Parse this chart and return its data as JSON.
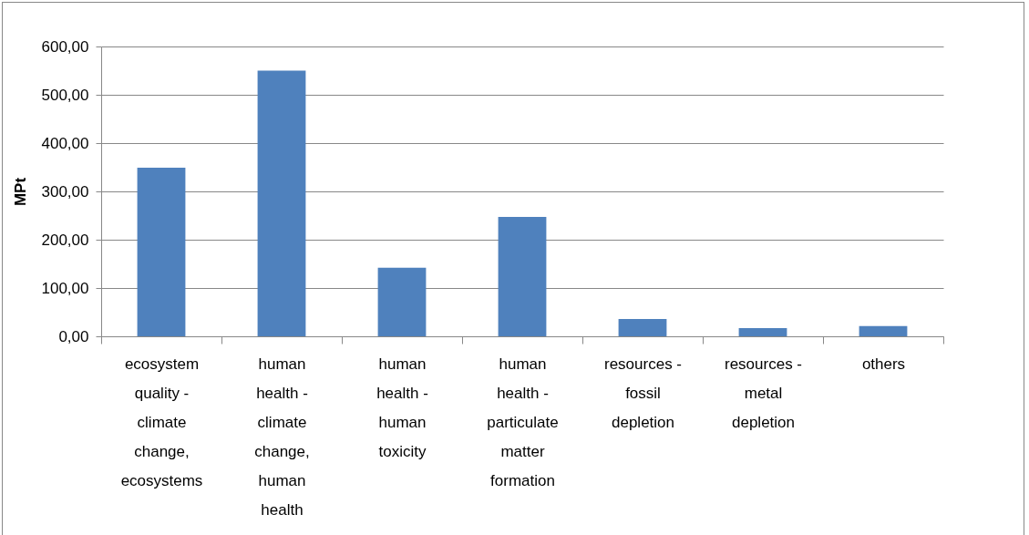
{
  "chart_data": {
    "type": "bar",
    "ylabel": "MPt",
    "categories": [
      "ecosystem quality - climate change, ecosystems",
      "human health - climate change, human health",
      "human health - human toxicity",
      "human health - particulate matter formation",
      "resources - fossil depletion",
      "resources - metal depletion",
      "others"
    ],
    "values": [
      349,
      550,
      142,
      247,
      36,
      17,
      21
    ],
    "color": "#4f81bd",
    "ylim": [
      0,
      600
    ],
    "yticks": [
      {
        "value": 0,
        "label": "0,00"
      },
      {
        "value": 100,
        "label": "100,00"
      },
      {
        "value": 200,
        "label": "200,00"
      },
      {
        "value": 300,
        "label": "300,00"
      },
      {
        "value": 400,
        "label": "400,00"
      },
      {
        "value": 500,
        "label": "500,00"
      },
      {
        "value": 600,
        "label": "600,00"
      }
    ],
    "grid": "y"
  }
}
